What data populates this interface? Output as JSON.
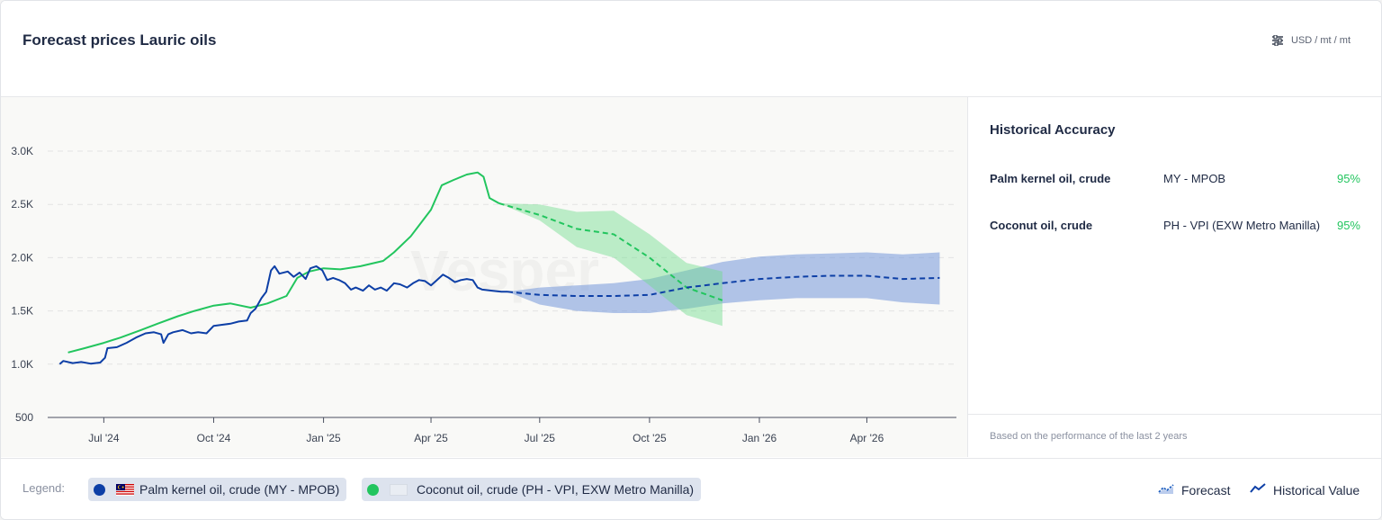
{
  "header": {
    "title": "Forecast prices Lauric oils",
    "unit_label": "USD / mt / mt",
    "unit_icon": "sliders-icon"
  },
  "side_panel": {
    "title": "Historical Accuracy",
    "rows": [
      {
        "name": "Palm kernel oil, crude",
        "source": "MY - MPOB",
        "accuracy": "95%"
      },
      {
        "name": "Coconut oil, crude",
        "source": "PH - VPI (EXW Metro Manilla)",
        "accuracy": "95%"
      }
    ],
    "footnote": "Based on the performance of the last 2 years"
  },
  "legend": {
    "label": "Legend:",
    "items": [
      {
        "label": "Palm kernel oil, crude (MY - MPOB)",
        "color": "#0d3fa6",
        "flag": "MY"
      },
      {
        "label": "Coconut oil, crude (PH - VPI, EXW Metro Manilla)",
        "color": "#22c55e",
        "flag": ""
      }
    ],
    "forecast_label": "Forecast",
    "historical_label": "Historical Value"
  },
  "chart_data": {
    "type": "line",
    "ylim": [
      500,
      3000
    ],
    "yticks": [
      500,
      1000,
      1500,
      2000,
      2500,
      3000
    ],
    "ytick_labels": [
      "500",
      "1.0K",
      "1.5K",
      "2.0K",
      "2.5K",
      "3.0K"
    ],
    "xlim": [
      "2024-05-15",
      "2026-06-15"
    ],
    "xticks": [
      "2024-07-01",
      "2024-10-01",
      "2025-01-01",
      "2025-04-01",
      "2025-07-01",
      "2025-10-01",
      "2026-01-01",
      "2026-04-01"
    ],
    "xtick_labels": [
      "Jul '24",
      "Oct '24",
      "Jan '25",
      "Apr '25",
      "Jul '25",
      "Oct '25",
      "Jan '26",
      "Apr '26"
    ],
    "grid": true,
    "watermark": "Vesper",
    "series": [
      {
        "name": "Palm kernel oil, crude (MY - MPOB)",
        "color": "#0d3fa6",
        "historical": [
          [
            "2024-05-25",
            1000
          ],
          [
            "2024-05-28",
            1030
          ],
          [
            "2024-06-05",
            1010
          ],
          [
            "2024-06-12",
            1020
          ],
          [
            "2024-06-20",
            1005
          ],
          [
            "2024-06-28",
            1015
          ],
          [
            "2024-07-02",
            1060
          ],
          [
            "2024-07-04",
            1150
          ],
          [
            "2024-07-12",
            1160
          ],
          [
            "2024-07-20",
            1200
          ],
          [
            "2024-07-28",
            1250
          ],
          [
            "2024-08-05",
            1290
          ],
          [
            "2024-08-12",
            1300
          ],
          [
            "2024-08-18",
            1280
          ],
          [
            "2024-08-20",
            1200
          ],
          [
            "2024-08-24",
            1280
          ],
          [
            "2024-08-28",
            1300
          ],
          [
            "2024-09-05",
            1320
          ],
          [
            "2024-09-12",
            1290
          ],
          [
            "2024-09-18",
            1300
          ],
          [
            "2024-09-25",
            1290
          ],
          [
            "2024-10-01",
            1360
          ],
          [
            "2024-10-08",
            1370
          ],
          [
            "2024-10-15",
            1380
          ],
          [
            "2024-10-22",
            1400
          ],
          [
            "2024-10-29",
            1410
          ],
          [
            "2024-11-01",
            1480
          ],
          [
            "2024-11-05",
            1520
          ],
          [
            "2024-11-10",
            1620
          ],
          [
            "2024-11-14",
            1680
          ],
          [
            "2024-11-18",
            1880
          ],
          [
            "2024-11-21",
            1920
          ],
          [
            "2024-11-25",
            1850
          ],
          [
            "2024-12-02",
            1870
          ],
          [
            "2024-12-07",
            1820
          ],
          [
            "2024-12-12",
            1860
          ],
          [
            "2024-12-17",
            1800
          ],
          [
            "2024-12-21",
            1900
          ],
          [
            "2024-12-26",
            1920
          ],
          [
            "2024-12-31",
            1880
          ],
          [
            "2025-01-04",
            1790
          ],
          [
            "2025-01-09",
            1810
          ],
          [
            "2025-01-14",
            1790
          ],
          [
            "2025-01-19",
            1760
          ],
          [
            "2025-01-24",
            1700
          ],
          [
            "2025-01-28",
            1720
          ],
          [
            "2025-02-03",
            1690
          ],
          [
            "2025-02-08",
            1740
          ],
          [
            "2025-02-13",
            1700
          ],
          [
            "2025-02-18",
            1720
          ],
          [
            "2025-02-23",
            1690
          ],
          [
            "2025-03-01",
            1760
          ],
          [
            "2025-03-06",
            1750
          ],
          [
            "2025-03-12",
            1720
          ],
          [
            "2025-03-17",
            1760
          ],
          [
            "2025-03-22",
            1790
          ],
          [
            "2025-03-27",
            1780
          ],
          [
            "2025-04-01",
            1740
          ],
          [
            "2025-04-06",
            1790
          ],
          [
            "2025-04-11",
            1840
          ],
          [
            "2025-04-16",
            1810
          ],
          [
            "2025-04-21",
            1770
          ],
          [
            "2025-04-26",
            1790
          ],
          [
            "2025-05-01",
            1800
          ],
          [
            "2025-05-06",
            1790
          ],
          [
            "2025-05-10",
            1720
          ],
          [
            "2025-05-14",
            1700
          ],
          [
            "2025-05-22",
            1690
          ],
          [
            "2025-05-30",
            1680
          ],
          [
            "2025-06-04",
            1680
          ]
        ],
        "forecast": [
          [
            "2025-06-04",
            1680
          ],
          [
            "2025-07-01",
            1650
          ],
          [
            "2025-08-01",
            1640
          ],
          [
            "2025-09-01",
            1640
          ],
          [
            "2025-10-01",
            1650
          ],
          [
            "2025-11-01",
            1720
          ],
          [
            "2025-12-01",
            1760
          ],
          [
            "2026-01-01",
            1800
          ],
          [
            "2026-02-01",
            1820
          ],
          [
            "2026-03-01",
            1830
          ],
          [
            "2026-04-01",
            1830
          ],
          [
            "2026-05-01",
            1800
          ],
          [
            "2026-06-01",
            1810
          ]
        ],
        "band": [
          [
            "2025-06-04",
            1680,
            1680
          ],
          [
            "2025-07-01",
            1560,
            1720
          ],
          [
            "2025-08-01",
            1500,
            1740
          ],
          [
            "2025-09-01",
            1480,
            1760
          ],
          [
            "2025-10-01",
            1480,
            1800
          ],
          [
            "2025-11-01",
            1520,
            1880
          ],
          [
            "2025-12-01",
            1570,
            1960
          ],
          [
            "2026-01-01",
            1600,
            2010
          ],
          [
            "2026-02-01",
            1620,
            2030
          ],
          [
            "2026-03-01",
            1620,
            2040
          ],
          [
            "2026-04-01",
            1620,
            2050
          ],
          [
            "2026-05-01",
            1580,
            2030
          ],
          [
            "2026-06-01",
            1560,
            2050
          ]
        ]
      },
      {
        "name": "Coconut oil, crude (PH - VPI, EXW Metro Manilla)",
        "color": "#22c55e",
        "historical": [
          [
            "2024-06-01",
            1110
          ],
          [
            "2024-06-15",
            1150
          ],
          [
            "2024-07-01",
            1200
          ],
          [
            "2024-07-15",
            1250
          ],
          [
            "2024-08-01",
            1320
          ],
          [
            "2024-08-15",
            1380
          ],
          [
            "2024-09-01",
            1450
          ],
          [
            "2024-09-15",
            1500
          ],
          [
            "2024-10-01",
            1550
          ],
          [
            "2024-10-15",
            1570
          ],
          [
            "2024-11-01",
            1530
          ],
          [
            "2024-11-15",
            1570
          ],
          [
            "2024-12-01",
            1640
          ],
          [
            "2024-12-10",
            1810
          ],
          [
            "2024-12-20",
            1870
          ],
          [
            "2025-01-01",
            1900
          ],
          [
            "2025-01-15",
            1890
          ],
          [
            "2025-02-01",
            1920
          ],
          [
            "2025-02-20",
            1970
          ],
          [
            "2025-03-01",
            2050
          ],
          [
            "2025-03-15",
            2200
          ],
          [
            "2025-04-01",
            2450
          ],
          [
            "2025-04-10",
            2680
          ],
          [
            "2025-04-20",
            2730
          ],
          [
            "2025-05-01",
            2780
          ],
          [
            "2025-05-10",
            2800
          ],
          [
            "2025-05-15",
            2760
          ],
          [
            "2025-05-20",
            2560
          ],
          [
            "2025-05-28",
            2510
          ]
        ],
        "forecast": [
          [
            "2025-05-28",
            2510
          ],
          [
            "2025-07-01",
            2400
          ],
          [
            "2025-08-01",
            2270
          ],
          [
            "2025-09-01",
            2220
          ],
          [
            "2025-10-01",
            2000
          ],
          [
            "2025-11-01",
            1720
          ],
          [
            "2025-12-01",
            1600
          ]
        ],
        "band": [
          [
            "2025-05-28",
            2510,
            2510
          ],
          [
            "2025-07-01",
            2350,
            2500
          ],
          [
            "2025-08-01",
            2100,
            2430
          ],
          [
            "2025-09-01",
            2000,
            2440
          ],
          [
            "2025-10-01",
            1740,
            2220
          ],
          [
            "2025-11-01",
            1460,
            1950
          ],
          [
            "2025-12-01",
            1360,
            1870
          ]
        ]
      }
    ]
  }
}
